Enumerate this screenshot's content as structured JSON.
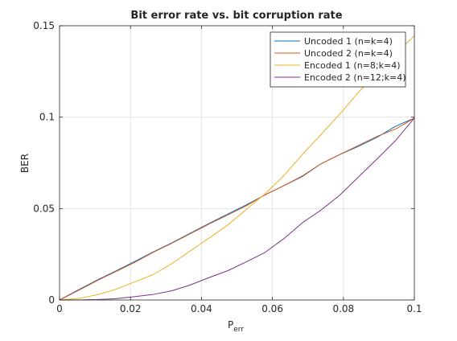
{
  "chart_data": {
    "type": "line",
    "title": "Bit error rate vs. bit corruption rate",
    "xlabel": "P",
    "xlabel_subscript": "err",
    "ylabel": "BER",
    "xlim": [
      0,
      0.1
    ],
    "ylim": [
      0,
      0.15
    ],
    "x_ticks": [
      0,
      0.02,
      0.04,
      0.06,
      0.08,
      0.1
    ],
    "x_tick_labels": [
      "0",
      "0.02",
      "0.04",
      "0.06",
      "0.08",
      "0.1"
    ],
    "y_ticks": [
      0,
      0.05,
      0.1,
      0.15
    ],
    "y_tick_labels": [
      "0",
      "0.05",
      "0.1",
      "0.15"
    ],
    "grid": true,
    "legend_position": "top-right",
    "series": [
      {
        "name": "Uncoded 1 (n=k=4)",
        "color": "#0072BD",
        "x": [
          0,
          0.0053,
          0.0105,
          0.0158,
          0.0211,
          0.0263,
          0.0316,
          0.0368,
          0.0421,
          0.0474,
          0.0526,
          0.0579,
          0.0632,
          0.0684,
          0.0737,
          0.0789,
          0.0842,
          0.0895,
          0.0947,
          0.1
        ],
        "y": [
          0,
          0.0055,
          0.0108,
          0.0158,
          0.021,
          0.0262,
          0.0312,
          0.0365,
          0.0418,
          0.047,
          0.052,
          0.0575,
          0.0625,
          0.0675,
          0.0745,
          0.0795,
          0.084,
          0.089,
          0.095,
          0.0995
        ]
      },
      {
        "name": "Uncoded 2 (n=k=4)",
        "color": "#D95319",
        "x": [
          0,
          0.0053,
          0.0105,
          0.0158,
          0.0211,
          0.0263,
          0.0316,
          0.0368,
          0.0421,
          0.0474,
          0.0526,
          0.0579,
          0.0632,
          0.0684,
          0.0737,
          0.0789,
          0.0842,
          0.0895,
          0.0947,
          0.1
        ],
        "y": [
          0,
          0.0052,
          0.0105,
          0.0155,
          0.0205,
          0.026,
          0.031,
          0.0362,
          0.0415,
          0.0465,
          0.0515,
          0.0575,
          0.0625,
          0.0678,
          0.0745,
          0.0795,
          0.0845,
          0.0895,
          0.0935,
          0.0995
        ]
      },
      {
        "name": "Encoded 1 (n=8;k=4)",
        "color": "#EDB120",
        "x": [
          0,
          0.0053,
          0.0105,
          0.0158,
          0.0211,
          0.0263,
          0.0316,
          0.0368,
          0.0421,
          0.0474,
          0.0526,
          0.0579,
          0.0632,
          0.0684,
          0.0737,
          0.0789,
          0.0842,
          0.0895,
          0.0947,
          0.1
        ],
        "y": [
          0,
          0.0008,
          0.0028,
          0.0058,
          0.0098,
          0.0138,
          0.0198,
          0.0268,
          0.0338,
          0.041,
          0.0495,
          0.058,
          0.068,
          0.0795,
          0.0905,
          0.1015,
          0.1135,
          0.1245,
          0.1345,
          0.1445
        ]
      },
      {
        "name": "Encoded 2 (n=12;k=4)",
        "color": "#7E2F8E",
        "x": [
          0,
          0.0053,
          0.0105,
          0.0158,
          0.0211,
          0.0263,
          0.0316,
          0.0368,
          0.0421,
          0.0474,
          0.0526,
          0.0579,
          0.0632,
          0.0684,
          0.0737,
          0.0789,
          0.0842,
          0.0895,
          0.0947,
          0.1
        ],
        "y": [
          0,
          0,
          0.0002,
          0.0007,
          0.0018,
          0.003,
          0.005,
          0.0082,
          0.0122,
          0.016,
          0.0208,
          0.026,
          0.0335,
          0.0422,
          0.0492,
          0.0572,
          0.0672,
          0.0772,
          0.0872,
          0.0995
        ]
      }
    ]
  }
}
